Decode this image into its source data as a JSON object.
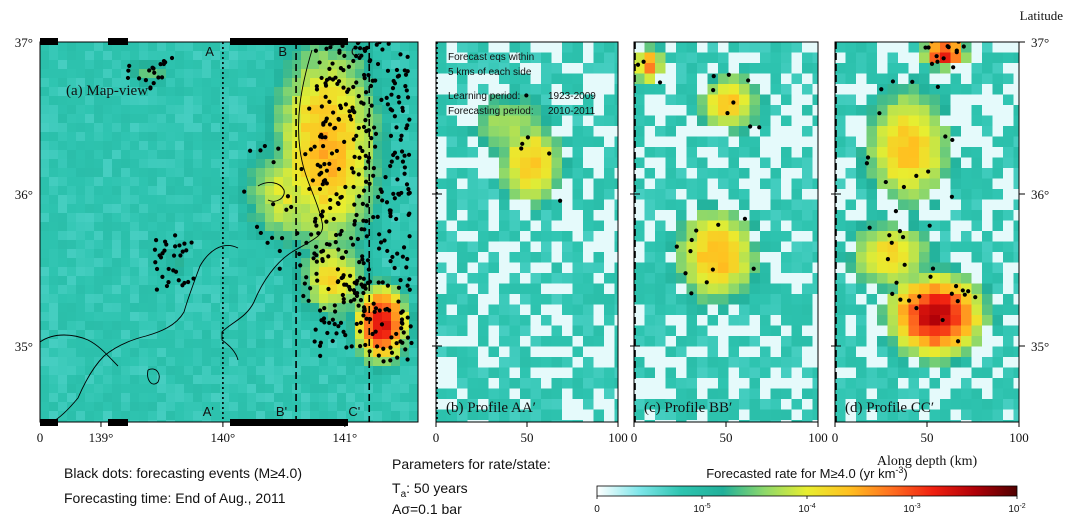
{
  "chart_data": [
    {
      "type": "heatmap",
      "panel": "a",
      "title": "(a) Map-view",
      "x_ticks": [
        "139°",
        "140°",
        "141°"
      ],
      "x_tick_values": [
        139,
        140,
        141
      ],
      "x_origin_label": "0",
      "xlim": [
        138.5,
        141.6
      ],
      "y_ticks": [
        "35°",
        "36°",
        "37°"
      ],
      "y_tick_values": [
        35,
        36,
        37
      ],
      "ylim": [
        34.5,
        37
      ],
      "profile_labels": [
        {
          "top": "A",
          "bottom": "A'",
          "lon": 140.0,
          "style": "dotted"
        },
        {
          "top": "B",
          "bottom": "B'",
          "lon": 140.6,
          "style": "dashed"
        },
        {
          "top": "C",
          "bottom": "C'",
          "lon": 141.2,
          "style": "dashed"
        }
      ],
      "hotspots": [
        {
          "x": 140.85,
          "y": 36.3,
          "level": 0.62,
          "rx": 0.55,
          "ry": 0.9
        },
        {
          "x": 141.3,
          "y": 35.15,
          "level": 0.85,
          "rx": 0.25,
          "ry": 0.3
        },
        {
          "x": 140.55,
          "y": 36.0,
          "level": 0.5,
          "rx": 0.5,
          "ry": 0.45
        },
        {
          "x": 140.9,
          "y": 35.45,
          "level": 0.55,
          "rx": 0.35,
          "ry": 0.35
        },
        {
          "x": 139.4,
          "y": 36.8,
          "level": 0.38,
          "rx": 0.25,
          "ry": 0.12
        },
        {
          "x": 139.6,
          "y": 35.55,
          "level": 0.3,
          "rx": 0.2,
          "ry": 0.2
        }
      ]
    },
    {
      "type": "heatmap",
      "panel": "b",
      "title": "(b) Profile AA′",
      "annotations": [
        {
          "left": "Forecast eqs within",
          "right": ""
        },
        {
          "left": "5 kms of each side",
          "right": ""
        },
        {
          "left": "Learning period:",
          "right": "1923-2009"
        },
        {
          "left": "Forecasting period:",
          "right": "2010-2011"
        }
      ],
      "x_ticks": [
        "0",
        "50",
        "100"
      ],
      "x_tick_values": [
        0,
        50,
        100
      ],
      "xlim": [
        0,
        100
      ],
      "ylim": [
        34.5,
        37
      ],
      "hotspots": [
        {
          "x": 52,
          "y": 36.2,
          "level": 0.6,
          "rx": 22,
          "ry": 0.35
        },
        {
          "x": 40,
          "y": 36.45,
          "level": 0.45,
          "rx": 30,
          "ry": 0.3
        }
      ]
    },
    {
      "type": "heatmap",
      "panel": "c",
      "title": "(c) Profile BB′",
      "x_ticks": [
        "0",
        "50",
        "100"
      ],
      "x_tick_values": [
        0,
        50,
        100
      ],
      "xlim": [
        0,
        100
      ],
      "ylim": [
        34.5,
        37
      ],
      "hotspots": [
        {
          "x": 45,
          "y": 35.6,
          "level": 0.62,
          "rx": 28,
          "ry": 0.4
        },
        {
          "x": 52,
          "y": 36.6,
          "level": 0.58,
          "rx": 22,
          "ry": 0.25
        },
        {
          "x": 8,
          "y": 36.85,
          "level": 0.7,
          "rx": 10,
          "ry": 0.15
        }
      ]
    },
    {
      "type": "heatmap",
      "panel": "d",
      "title": "(d) Profile CC′",
      "x_ticks": [
        "0",
        "50",
        "100"
      ],
      "x_tick_values": [
        0,
        50,
        100
      ],
      "xlim": [
        0,
        100
      ],
      "xlabel": "Along depth (km)",
      "ylim": [
        34.5,
        37
      ],
      "hotspots": [
        {
          "x": 55,
          "y": 35.2,
          "level": 0.88,
          "rx": 30,
          "ry": 0.32
        },
        {
          "x": 60,
          "y": 36.92,
          "level": 0.88,
          "rx": 14,
          "ry": 0.1
        },
        {
          "x": 40,
          "y": 36.3,
          "level": 0.6,
          "rx": 30,
          "ry": 0.5
        },
        {
          "x": 30,
          "y": 35.6,
          "level": 0.55,
          "rx": 30,
          "ry": 0.3
        }
      ]
    }
  ],
  "right_axis": {
    "label": "Latitude",
    "ticks": [
      "35°",
      "36°",
      "37°"
    ],
    "tick_values": [
      35,
      36,
      37
    ]
  },
  "colorbar": {
    "title": "Forecasted rate for M≥4.0 (yr km",
    "title_sup": "-3",
    "title_end": ")",
    "tick_labels": [
      {
        "base": "0",
        "exp": ""
      },
      {
        "base": "10",
        "exp": "-5"
      },
      {
        "base": "10",
        "exp": "-4"
      },
      {
        "base": "10",
        "exp": "-3"
      },
      {
        "base": "10",
        "exp": "-2"
      }
    ],
    "colors": [
      "#ffffff",
      "#7fe6ea",
      "#2ec4b0",
      "#22b09a",
      "#8ed86a",
      "#e8ee30",
      "#ffc020",
      "#ff7020",
      "#f02010",
      "#b00008",
      "#500000"
    ]
  },
  "notes": {
    "black_dots": "Black dots: forecasting events (M≥4.0)",
    "forecasting_time": "Forecasting time: End of Aug., 2011",
    "params_title": "Parameters for rate/state:",
    "ta_base": "T",
    "ta_sub": "a",
    "ta_value": ": 50 years",
    "asigma": "Aσ=0.1 bar"
  }
}
